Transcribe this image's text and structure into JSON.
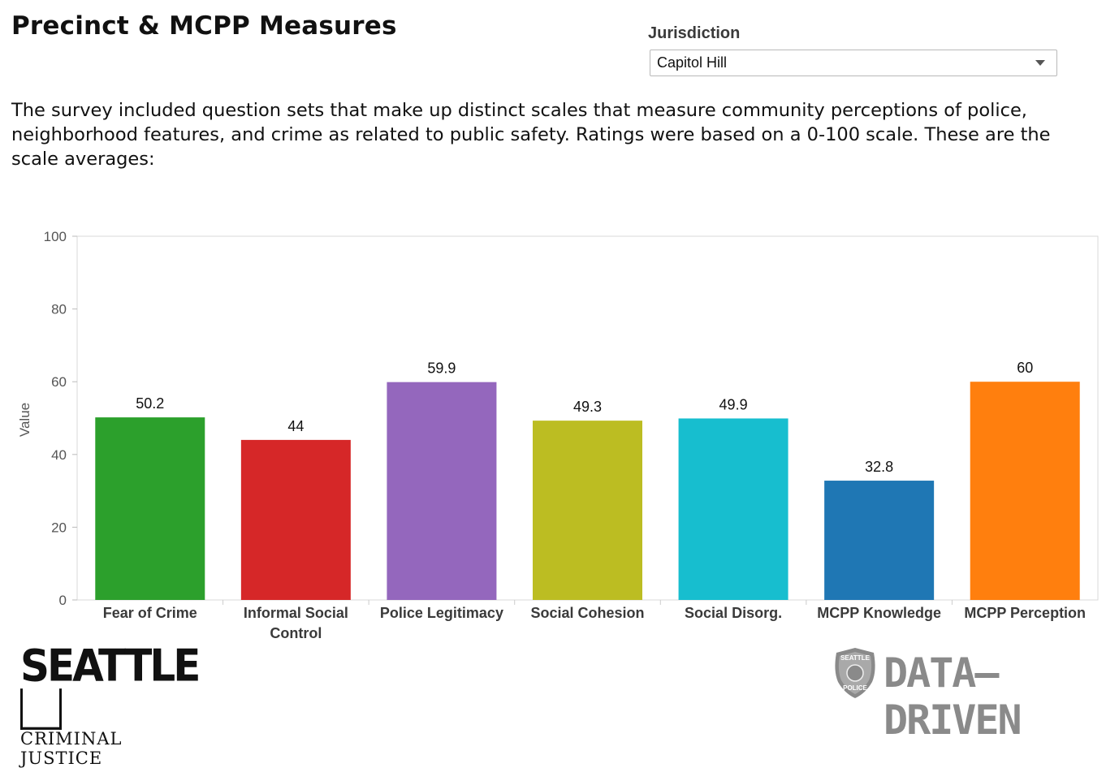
{
  "header": {
    "title": "Precinct & MCPP Measures"
  },
  "filter": {
    "label": "Jurisdiction",
    "selected": "Capitol Hill"
  },
  "intro": {
    "text": "The survey included question sets that make up distinct scales that measure community perceptions of police, neighborhood features, and crime as related to public safety. Ratings were based on a 0-100 scale. These are the scale averages:"
  },
  "chart_data": {
    "type": "bar",
    "title": "",
    "xlabel": "",
    "ylabel": "Value",
    "ylim": [
      0,
      100
    ],
    "yticks": [
      0,
      20,
      40,
      60,
      80,
      100
    ],
    "grid": false,
    "categories": [
      [
        "Fear of Crime"
      ],
      [
        "Informal Social",
        "Control"
      ],
      [
        "Police Legitimacy"
      ],
      [
        "Social Cohesion"
      ],
      [
        "Social Disorg."
      ],
      [
        "MCPP Knowledge"
      ],
      [
        "MCPP Perception"
      ]
    ],
    "values": [
      50.2,
      44,
      59.9,
      49.3,
      49.9,
      32.8,
      60
    ],
    "value_labels": [
      "50.2",
      "44",
      "59.9",
      "49.3",
      "49.9",
      "32.8",
      "60"
    ],
    "colors": [
      "#2ca02c",
      "#d62728",
      "#9467bd",
      "#bcbd22",
      "#17becf",
      "#1f77b4",
      "#ff7f0e"
    ]
  },
  "logos": {
    "seattle_u": {
      "main": "SEATTLE",
      "letter": "U",
      "sub": "CRIMINAL JUSTICE"
    },
    "data_driven": {
      "text": "DATA–DRIVEN",
      "badge_top": "SEATTLE",
      "badge_bottom": "POLICE"
    }
  }
}
